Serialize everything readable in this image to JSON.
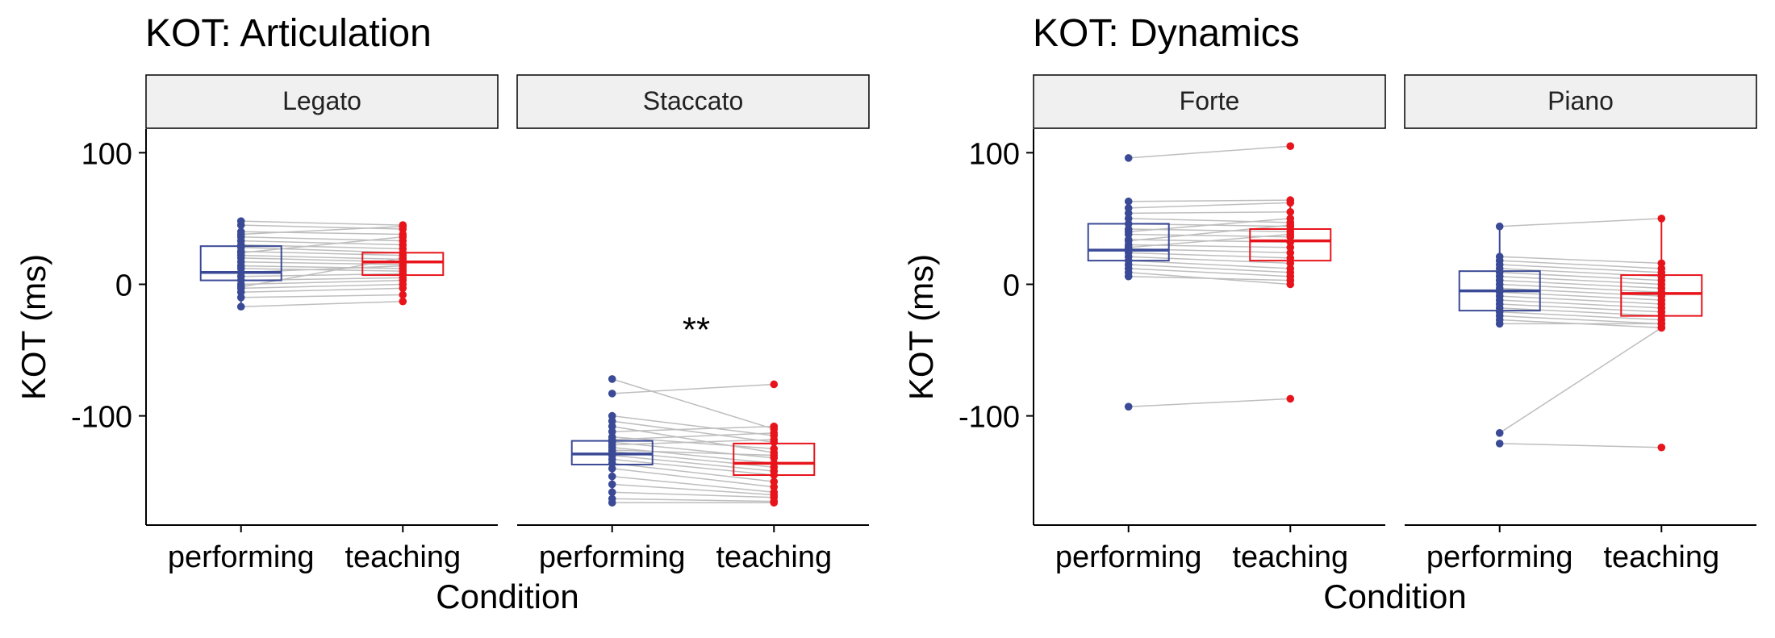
{
  "colors": {
    "performing": "#3B4A96",
    "teaching": "#E8141B",
    "pair_line": "#BEBEBE",
    "strip_fill": "#F0F0F0"
  },
  "chart_data": [
    {
      "type": "boxplot",
      "title": "KOT: Articulation",
      "ylabel": "KOT (ms)",
      "xlabel": "Condition",
      "ylim": [
        -183,
        118
      ],
      "yticks": [
        100,
        0,
        -100
      ],
      "ytick_labels": [
        "100",
        "0",
        "-100"
      ],
      "categories": [
        "performing",
        "teaching"
      ],
      "panels": [
        {
          "facet": "Legato",
          "annotation": "",
          "box": {
            "performing": {
              "q1": 3,
              "median": 9,
              "q3": 29
            },
            "teaching": {
              "q1": 7,
              "median": 17,
              "q3": 24
            }
          },
          "pairs": [
            [
              48,
              45
            ],
            [
              45,
              42
            ],
            [
              40,
              38
            ],
            [
              36,
              33
            ],
            [
              33,
              30
            ],
            [
              30,
              27
            ],
            [
              28,
              24
            ],
            [
              25,
              22
            ],
            [
              22,
              19
            ],
            [
              20,
              17
            ],
            [
              17,
              15
            ],
            [
              14,
              12
            ],
            [
              12,
              10
            ],
            [
              9,
              14
            ],
            [
              6,
              8
            ],
            [
              3,
              5
            ],
            [
              0,
              3
            ],
            [
              -3,
              0
            ],
            [
              -6,
              -3
            ],
            [
              -10,
              -8
            ],
            [
              -17,
              -13
            ],
            [
              38,
              44
            ],
            [
              24,
              36
            ],
            [
              -2,
              20
            ]
          ]
        },
        {
          "facet": "Staccato",
          "annotation": "**",
          "box": {
            "performing": {
              "q1": -137,
              "median": -129,
              "q3": -119
            },
            "teaching": {
              "q1": -145,
              "median": -136,
              "q3": -121
            }
          },
          "pairs": [
            [
              -72,
              -110
            ],
            [
              -83,
              -76
            ],
            [
              -100,
              -115
            ],
            [
              -104,
              -120
            ],
            [
              -108,
              -128
            ],
            [
              -112,
              -108
            ],
            [
              -116,
              -125
            ],
            [
              -120,
              -132
            ],
            [
              -124,
              -136
            ],
            [
              -127,
              -139
            ],
            [
              -130,
              -142
            ],
            [
              -133,
              -145
            ],
            [
              -136,
              -150
            ],
            [
              -140,
              -154
            ],
            [
              -146,
              -158
            ],
            [
              -152,
              -160
            ],
            [
              -158,
              -162
            ],
            [
              -163,
              -165
            ],
            [
              -166,
              -166
            ],
            [
              -122,
              -118
            ],
            [
              -118,
              -113
            ],
            [
              -126,
              -130
            ]
          ]
        }
      ]
    },
    {
      "type": "boxplot",
      "title": "KOT: Dynamics",
      "ylabel": "KOT (ms)",
      "xlabel": "Condition",
      "ylim": [
        -183,
        118
      ],
      "yticks": [
        100,
        0,
        -100
      ],
      "ytick_labels": [
        "100",
        "0",
        "-100"
      ],
      "categories": [
        "performing",
        "teaching"
      ],
      "panels": [
        {
          "facet": "Forte",
          "annotation": "",
          "box": {
            "performing": {
              "q1": 18,
              "median": 26,
              "q3": 46
            },
            "teaching": {
              "q1": 18,
              "median": 33,
              "q3": 42
            }
          },
          "pairs": [
            [
              96,
              105
            ],
            [
              63,
              64
            ],
            [
              58,
              62
            ],
            [
              54,
              55
            ],
            [
              50,
              47
            ],
            [
              46,
              44
            ],
            [
              42,
              40
            ],
            [
              38,
              36
            ],
            [
              34,
              32
            ],
            [
              30,
              28
            ],
            [
              27,
              24
            ],
            [
              24,
              20
            ],
            [
              21,
              16
            ],
            [
              18,
              12
            ],
            [
              15,
              9
            ],
            [
              12,
              6
            ],
            [
              9,
              0
            ],
            [
              6,
              3
            ],
            [
              28,
              38
            ],
            [
              33,
              45
            ],
            [
              40,
              50
            ],
            [
              -93,
              -87
            ]
          ]
        },
        {
          "facet": "Piano",
          "annotation": "",
          "box": {
            "performing": {
              "q1": -20,
              "median": -5,
              "q3": 10
            },
            "teaching": {
              "q1": -24,
              "median": -7,
              "q3": 7
            }
          },
          "pairs": [
            [
              44,
              50
            ],
            [
              21,
              16
            ],
            [
              18,
              12
            ],
            [
              15,
              9
            ],
            [
              12,
              6
            ],
            [
              9,
              3
            ],
            [
              6,
              0
            ],
            [
              3,
              -3
            ],
            [
              0,
              -6
            ],
            [
              -3,
              -9
            ],
            [
              -6,
              -12
            ],
            [
              -9,
              -15
            ],
            [
              -12,
              -18
            ],
            [
              -15,
              -21
            ],
            [
              -18,
              -24
            ],
            [
              -21,
              -27
            ],
            [
              -24,
              -30
            ],
            [
              -27,
              -33
            ],
            [
              -30,
              -30
            ],
            [
              -113,
              -33
            ],
            [
              -121,
              -124
            ]
          ]
        }
      ]
    }
  ]
}
